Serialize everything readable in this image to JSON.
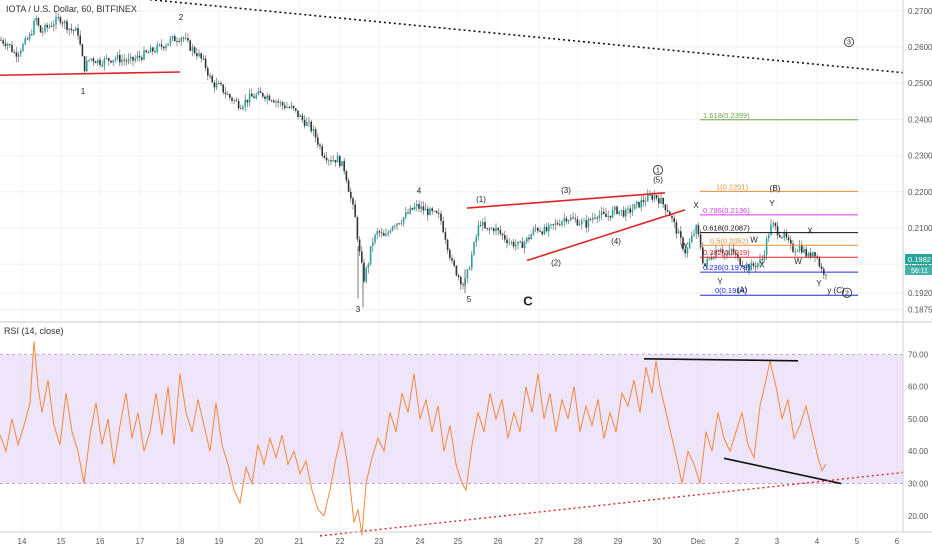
{
  "header": {
    "title": "IOTA / U.S. Dollar, 60, BITFINEX"
  },
  "rsi_panel": {
    "title": "RSI (14, close)"
  },
  "price_badge": {
    "price": "0.1982",
    "countdown": "56:11"
  },
  "colors": {
    "up": "#26a69a",
    "down": "#ef5350",
    "candle_body": "#333333",
    "rsi_line": "#f0883e",
    "rsi_band": "#e6d7f7",
    "red_line": "#e02424"
  },
  "chart_data": [
    {
      "type": "candlestick",
      "title": "IOTA / U.S. Dollar, 60, BITFINEX",
      "ylim": [
        0.184,
        0.273
      ],
      "y_ticks": [
        "0.2700",
        "0.2600",
        "0.2500",
        "0.2400",
        "0.2300",
        "0.2200",
        "0.2100",
        "0.2000",
        "0.1920",
        "0.1875"
      ],
      "x_ticks": [
        "14",
        "15",
        "16",
        "17",
        "18",
        "19",
        "20",
        "21",
        "22",
        "23",
        "24",
        "25",
        "26",
        "27",
        "28",
        "29",
        "30",
        "Dec",
        "2",
        "3",
        "4",
        "5",
        "6"
      ],
      "close_path": [
        [
          0,
          0.262
        ],
        [
          8,
          0.261
        ],
        [
          15,
          0.258
        ],
        [
          22,
          0.26
        ],
        [
          30,
          0.263
        ],
        [
          36,
          0.268
        ],
        [
          40,
          0.264
        ],
        [
          50,
          0.266
        ],
        [
          60,
          0.268
        ],
        [
          70,
          0.265
        ],
        [
          78,
          0.264
        ],
        [
          84,
          0.254
        ],
        [
          90,
          0.257
        ],
        [
          100,
          0.256
        ],
        [
          115,
          0.257
        ],
        [
          130,
          0.256
        ],
        [
          145,
          0.258
        ],
        [
          160,
          0.26
        ],
        [
          172,
          0.262
        ],
        [
          182,
          0.263
        ],
        [
          190,
          0.26
        ],
        [
          198,
          0.258
        ],
        [
          205,
          0.255
        ],
        [
          212,
          0.25
        ],
        [
          220,
          0.249
        ],
        [
          230,
          0.246
        ],
        [
          240,
          0.244
        ],
        [
          250,
          0.246
        ],
        [
          262,
          0.247
        ],
        [
          272,
          0.246
        ],
        [
          282,
          0.244
        ],
        [
          292,
          0.243
        ],
        [
          302,
          0.24
        ],
        [
          310,
          0.238
        ],
        [
          316,
          0.235
        ],
        [
          322,
          0.231
        ],
        [
          330,
          0.229
        ],
        [
          338,
          0.229
        ],
        [
          345,
          0.226
        ],
        [
          350,
          0.219
        ],
        [
          355,
          0.213
        ],
        [
          360,
          0.202
        ],
        [
          364,
          0.196
        ],
        [
          368,
          0.2
        ],
        [
          372,
          0.206
        ],
        [
          378,
          0.209
        ],
        [
          385,
          0.207
        ],
        [
          392,
          0.211
        ],
        [
          400,
          0.212
        ],
        [
          408,
          0.214
        ],
        [
          416,
          0.216
        ],
        [
          424,
          0.215
        ],
        [
          432,
          0.214
        ],
        [
          440,
          0.213
        ],
        [
          446,
          0.207
        ],
        [
          452,
          0.2
        ],
        [
          458,
          0.197
        ],
        [
          464,
          0.194
        ],
        [
          468,
          0.198
        ],
        [
          474,
          0.205
        ],
        [
          480,
          0.212
        ],
        [
          486,
          0.209
        ],
        [
          494,
          0.21
        ],
        [
          502,
          0.208
        ],
        [
          510,
          0.206
        ],
        [
          520,
          0.205
        ],
        [
          528,
          0.207
        ],
        [
          536,
          0.21
        ],
        [
          546,
          0.209
        ],
        [
          556,
          0.211
        ],
        [
          566,
          0.213
        ],
        [
          576,
          0.212
        ],
        [
          586,
          0.211
        ],
        [
          596,
          0.214
        ],
        [
          606,
          0.213
        ],
        [
          616,
          0.215
        ],
        [
          626,
          0.214
        ],
        [
          636,
          0.216
        ],
        [
          646,
          0.218
        ],
        [
          655,
          0.219
        ],
        [
          662,
          0.217
        ],
        [
          668,
          0.215
        ],
        [
          674,
          0.211
        ],
        [
          680,
          0.207
        ],
        [
          686,
          0.203
        ],
        [
          690,
          0.206
        ],
        [
          696,
          0.21
        ],
        [
          700,
          0.206
        ],
        [
          704,
          0.199
        ],
        [
          708,
          0.201
        ],
        [
          714,
          0.203
        ],
        [
          720,
          0.205
        ],
        [
          726,
          0.202
        ],
        [
          732,
          0.204
        ],
        [
          738,
          0.201
        ],
        [
          744,
          0.2
        ],
        [
          750,
          0.199
        ],
        [
          756,
          0.2
        ],
        [
          762,
          0.201
        ],
        [
          768,
          0.208
        ],
        [
          772,
          0.211
        ],
        [
          778,
          0.209
        ],
        [
          786,
          0.207
        ],
        [
          792,
          0.204
        ],
        [
          800,
          0.205
        ],
        [
          808,
          0.202
        ],
        [
          814,
          0.204
        ],
        [
          818,
          0.201
        ],
        [
          822,
          0.198
        ],
        [
          828,
          0.198
        ]
      ],
      "red_lines": [
        {
          "from": [
            0,
            0.2522
          ],
          "to": [
            180,
            0.2531
          ]
        },
        {
          "from": [
            467,
            0.2155
          ],
          "to": [
            665,
            0.2197
          ]
        },
        {
          "from": [
            527,
            0.201
          ],
          "to": [
            685,
            0.215
          ]
        }
      ],
      "fib_levels": [
        {
          "label": "1.618(0.2399)",
          "value": 0.2399,
          "color": "#6aa84f",
          "x_label": 703,
          "x_start": 700
        },
        {
          "label": "1(0.2201)",
          "value": 0.2201,
          "color": "#e69138",
          "x_label": 716,
          "x_start": 700
        },
        {
          "label": "0.786(0.2136)",
          "value": 0.2136,
          "color": "#d63df0",
          "x_label": 703,
          "x_start": 700
        },
        {
          "label": "0.618(0.2087)",
          "value": 0.2087,
          "color": "#111111",
          "x_label": 703,
          "x_start": 700
        },
        {
          "label": "0.5(0.2052)",
          "value": 0.2052,
          "color": "#e69138",
          "x_label": 710,
          "x_start": 700
        },
        {
          "label": "0.382(0.2019)",
          "value": 0.2019,
          "color": "#e02424",
          "x_label": 703,
          "x_start": 700
        },
        {
          "label": "0.236(0.1978)",
          "value": 0.1978,
          "color": "#1c2bd6",
          "x_label": 703,
          "x_start": 700
        },
        {
          "label": "0(0.1914)",
          "value": 0.1914,
          "color": "#1c2bd6",
          "x_label": 715,
          "x_start": 700
        }
      ],
      "annotations": [
        {
          "text": "1",
          "x": 83,
          "y": 0.247
        },
        {
          "text": "2",
          "x": 181,
          "y": 0.2675
        },
        {
          "text": "3",
          "x": 358,
          "y": 0.1868
        },
        {
          "text": "4",
          "x": 419,
          "y": 0.2195
        },
        {
          "text": "5",
          "x": 469,
          "y": 0.1895
        },
        {
          "text": "(1)",
          "x": 481,
          "y": 0.2172
        },
        {
          "text": "(2)",
          "x": 556,
          "y": 0.1996
        },
        {
          "text": "(3)",
          "x": 566,
          "y": 0.2197
        },
        {
          "text": "(4)",
          "x": 616,
          "y": 0.2055
        },
        {
          "text": "(5)",
          "x": 658,
          "y": 0.2225
        },
        {
          "text": "X",
          "x": 696,
          "y": 0.2155
        },
        {
          "text": "W",
          "x": 684,
          "y": 0.2043
        },
        {
          "text": "Y",
          "x": 720,
          "y": 0.1943
        },
        {
          "text": "(A)",
          "x": 742,
          "y": 0.1922
        },
        {
          "text": "X",
          "x": 762,
          "y": 0.199
        },
        {
          "text": "W",
          "x": 754,
          "y": 0.206
        },
        {
          "text": "(B)",
          "x": 775,
          "y": 0.2202
        },
        {
          "text": "Y",
          "x": 772,
          "y": 0.216
        },
        {
          "text": "X",
          "x": 810,
          "y": 0.2085
        },
        {
          "text": "W",
          "x": 798,
          "y": 0.2
        },
        {
          "text": "Y",
          "x": 819,
          "y": 0.194
        },
        {
          "text": "y (C)",
          "x": 836,
          "y": 0.192
        },
        {
          "text": "C",
          "x": 528,
          "y": 0.1885,
          "big": true
        }
      ],
      "circled_labels": [
        {
          "text": "1",
          "x": 658,
          "y": 0.226
        },
        {
          "text": "2",
          "x": 847,
          "y": 0.1921
        },
        {
          "text": "3",
          "x": 849,
          "y": 0.2614
        }
      ],
      "dotted_trend": {
        "from": [
          150,
          0.2731
        ],
        "to": [
          903,
          0.2529
        ]
      }
    },
    {
      "type": "line",
      "title": "RSI (14, close)",
      "ylim": [
        15,
        80
      ],
      "y_ticks": [
        "70.00",
        "60.00",
        "50.00",
        "40.00",
        "30.00",
        "20.00"
      ],
      "band": [
        30,
        70
      ],
      "rsi_path": [
        [
          0,
          45
        ],
        [
          6,
          40
        ],
        [
          12,
          50
        ],
        [
          18,
          42
        ],
        [
          24,
          48
        ],
        [
          30,
          55
        ],
        [
          34,
          74
        ],
        [
          38,
          60
        ],
        [
          42,
          52
        ],
        [
          48,
          62
        ],
        [
          54,
          48
        ],
        [
          60,
          42
        ],
        [
          66,
          58
        ],
        [
          72,
          46
        ],
        [
          78,
          40
        ],
        [
          84,
          30
        ],
        [
          90,
          45
        ],
        [
          96,
          55
        ],
        [
          102,
          42
        ],
        [
          108,
          50
        ],
        [
          114,
          36
        ],
        [
          120,
          48
        ],
        [
          126,
          58
        ],
        [
          132,
          44
        ],
        [
          138,
          52
        ],
        [
          144,
          40
        ],
        [
          150,
          46
        ],
        [
          156,
          58
        ],
        [
          162,
          45
        ],
        [
          168,
          60
        ],
        [
          174,
          42
        ],
        [
          180,
          64
        ],
        [
          186,
          52
        ],
        [
          192,
          46
        ],
        [
          198,
          56
        ],
        [
          204,
          48
        ],
        [
          210,
          40
        ],
        [
          216,
          55
        ],
        [
          222,
          42
        ],
        [
          228,
          36
        ],
        [
          234,
          28
        ],
        [
          240,
          24
        ],
        [
          246,
          35
        ],
        [
          252,
          30
        ],
        [
          258,
          42
        ],
        [
          264,
          36
        ],
        [
          270,
          44
        ],
        [
          276,
          38
        ],
        [
          282,
          45
        ],
        [
          288,
          36
        ],
        [
          294,
          40
        ],
        [
          300,
          33
        ],
        [
          306,
          37
        ],
        [
          312,
          28
        ],
        [
          318,
          22
        ],
        [
          324,
          20
        ],
        [
          330,
          28
        ],
        [
          336,
          38
        ],
        [
          342,
          46
        ],
        [
          348,
          35
        ],
        [
          354,
          18
        ],
        [
          358,
          22
        ],
        [
          362,
          14
        ],
        [
          366,
          30
        ],
        [
          372,
          38
        ],
        [
          378,
          44
        ],
        [
          384,
          40
        ],
        [
          390,
          52
        ],
        [
          396,
          46
        ],
        [
          402,
          58
        ],
        [
          408,
          52
        ],
        [
          414,
          64
        ],
        [
          420,
          50
        ],
        [
          426,
          56
        ],
        [
          432,
          46
        ],
        [
          438,
          54
        ],
        [
          444,
          40
        ],
        [
          450,
          48
        ],
        [
          456,
          36
        ],
        [
          462,
          30
        ],
        [
          466,
          28
        ],
        [
          472,
          42
        ],
        [
          478,
          52
        ],
        [
          484,
          46
        ],
        [
          490,
          58
        ],
        [
          496,
          50
        ],
        [
          502,
          56
        ],
        [
          508,
          44
        ],
        [
          514,
          52
        ],
        [
          520,
          46
        ],
        [
          526,
          60
        ],
        [
          532,
          52
        ],
        [
          538,
          64
        ],
        [
          544,
          50
        ],
        [
          550,
          58
        ],
        [
          556,
          46
        ],
        [
          562,
          56
        ],
        [
          568,
          50
        ],
        [
          574,
          60
        ],
        [
          580,
          46
        ],
        [
          586,
          54
        ],
        [
          592,
          48
        ],
        [
          598,
          56
        ],
        [
          604,
          44
        ],
        [
          610,
          52
        ],
        [
          616,
          46
        ],
        [
          622,
          58
        ],
        [
          628,
          54
        ],
        [
          634,
          62
        ],
        [
          640,
          52
        ],
        [
          646,
          66
        ],
        [
          652,
          58
        ],
        [
          656,
          68
        ],
        [
          660,
          60
        ],
        [
          666,
          52
        ],
        [
          672,
          44
        ],
        [
          678,
          36
        ],
        [
          682,
          30
        ],
        [
          688,
          40
        ],
        [
          694,
          36
        ],
        [
          700,
          30
        ],
        [
          706,
          46
        ],
        [
          712,
          40
        ],
        [
          718,
          52
        ],
        [
          724,
          44
        ],
        [
          730,
          40
        ],
        [
          736,
          46
        ],
        [
          742,
          52
        ],
        [
          748,
          42
        ],
        [
          754,
          38
        ],
        [
          760,
          54
        ],
        [
          766,
          62
        ],
        [
          770,
          68
        ],
        [
          776,
          60
        ],
        [
          782,
          50
        ],
        [
          788,
          56
        ],
        [
          794,
          44
        ],
        [
          800,
          48
        ],
        [
          806,
          54
        ],
        [
          812,
          46
        ],
        [
          818,
          38
        ],
        [
          822,
          34
        ],
        [
          826,
          36
        ]
      ],
      "black_lines": [
        {
          "from": [
            644,
            68.6
          ],
          "to": [
            798,
            68.0
          ]
        },
        {
          "from": [
            724,
            37.8
          ],
          "to": [
            841,
            30.0
          ]
        }
      ],
      "dotted_trend": {
        "from": [
          320,
          13.8
        ],
        "to": [
          905,
          33.5
        ]
      }
    }
  ]
}
